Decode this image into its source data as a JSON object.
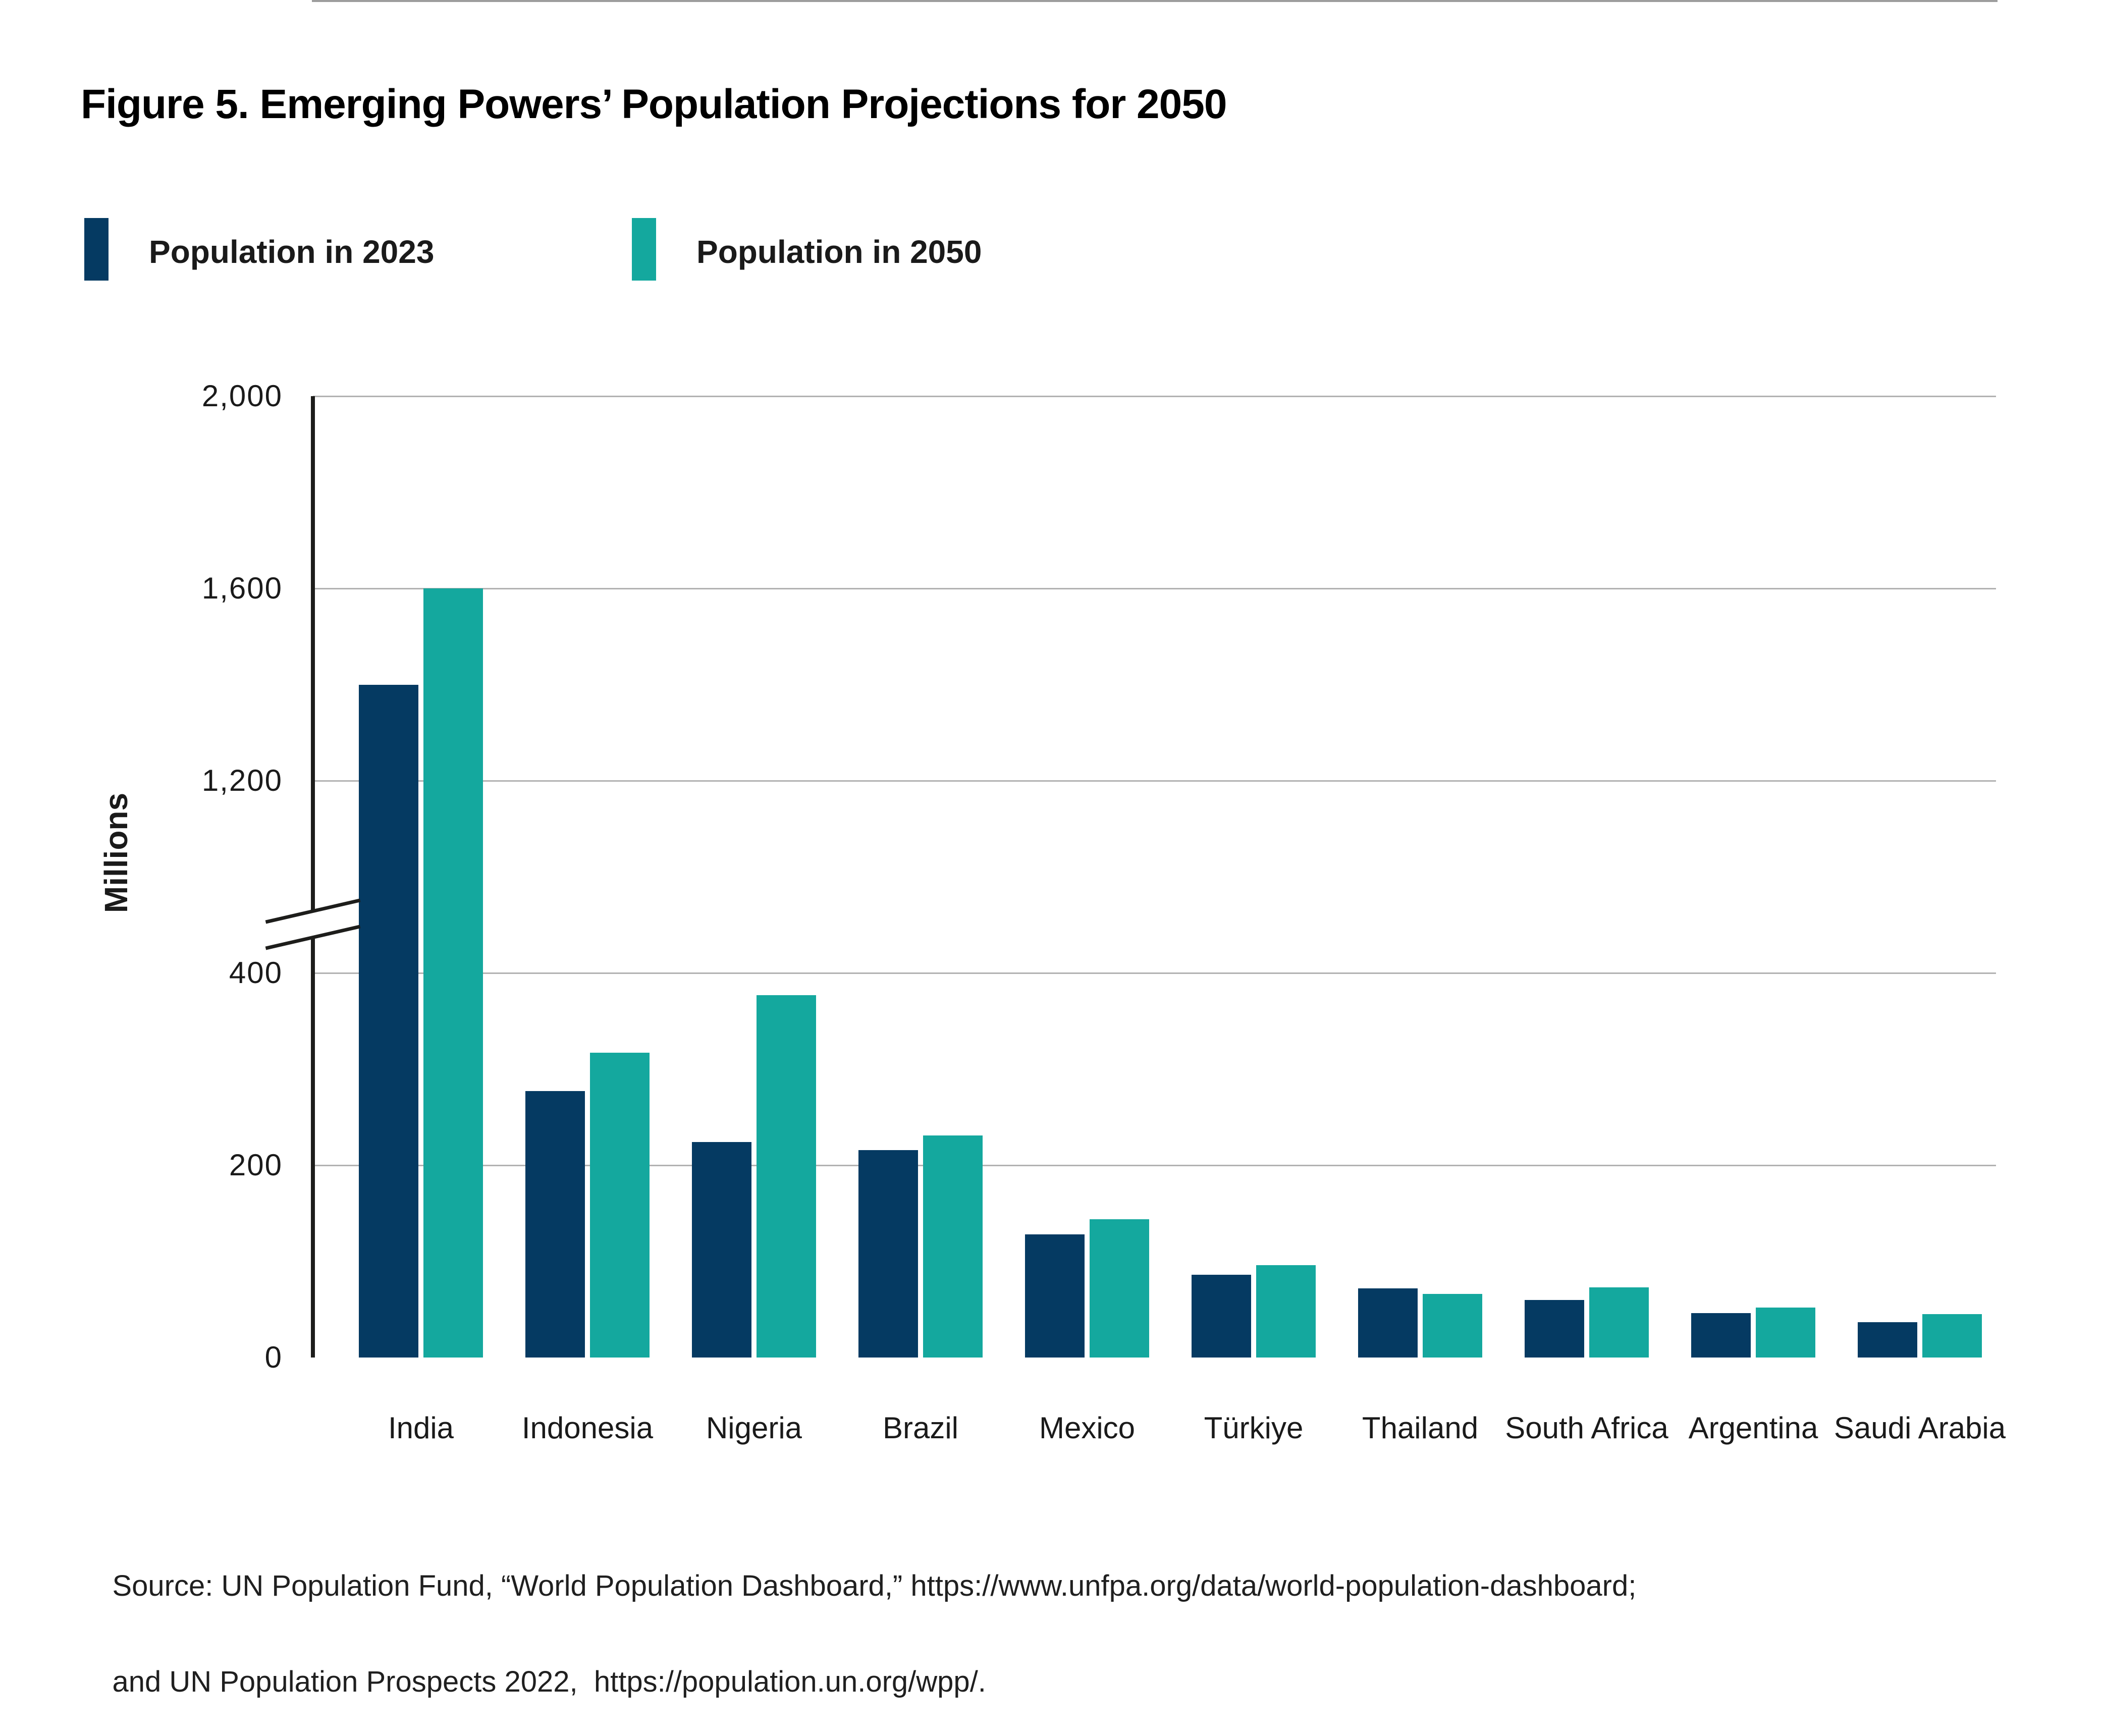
{
  "figure": {
    "title": "Figure 5. Emerging Powers’ Population Projections for 2050"
  },
  "legend": {
    "items": [
      {
        "label": "Population in 2023",
        "color": "#053a62"
      },
      {
        "label": "Population in 2050",
        "color": "#14a89e"
      }
    ]
  },
  "chart_data": {
    "type": "bar",
    "title": "Figure 5. Emerging Powers’ Population Projections for 2050",
    "ylabel": "Millions",
    "unit": "millions of people",
    "categories": [
      "India",
      "Indonesia",
      "Nigeria",
      "Brazil",
      "Mexico",
      "Türkiye",
      "Thailand",
      "South Africa",
      "Argentina",
      "Saudi Arabia"
    ],
    "series": [
      {
        "name": "Population in 2023",
        "color": "#053a62",
        "values": [
          1400,
          277,
          224,
          216,
          128,
          86,
          72,
          60,
          46,
          37
        ]
      },
      {
        "name": "Population in 2050",
        "color": "#14a89e",
        "values": [
          1600,
          317,
          377,
          231,
          144,
          96,
          66,
          73,
          52,
          45
        ]
      }
    ],
    "y_axis": {
      "broken": true,
      "break_between": [
        400,
        1200
      ],
      "ticks_top_to_bottom": [
        {
          "value": 2000,
          "label": "2,000"
        },
        {
          "value": 1600,
          "label": "1,600"
        },
        {
          "value": 1200,
          "label": "1,200"
        },
        {
          "value": 400,
          "label": "400"
        },
        {
          "value": 200,
          "label": "200"
        },
        {
          "value": 0,
          "label": "0"
        }
      ]
    },
    "grid": true,
    "legend_position": "top-left"
  },
  "source": {
    "line1": "Source: UN Population Fund, “World Population Dashboard,” https://www.unfpa.org/data/world-population-dashboard;",
    "line2": "and UN Population Prospects 2022,  https://population.un.org/wpp/."
  }
}
